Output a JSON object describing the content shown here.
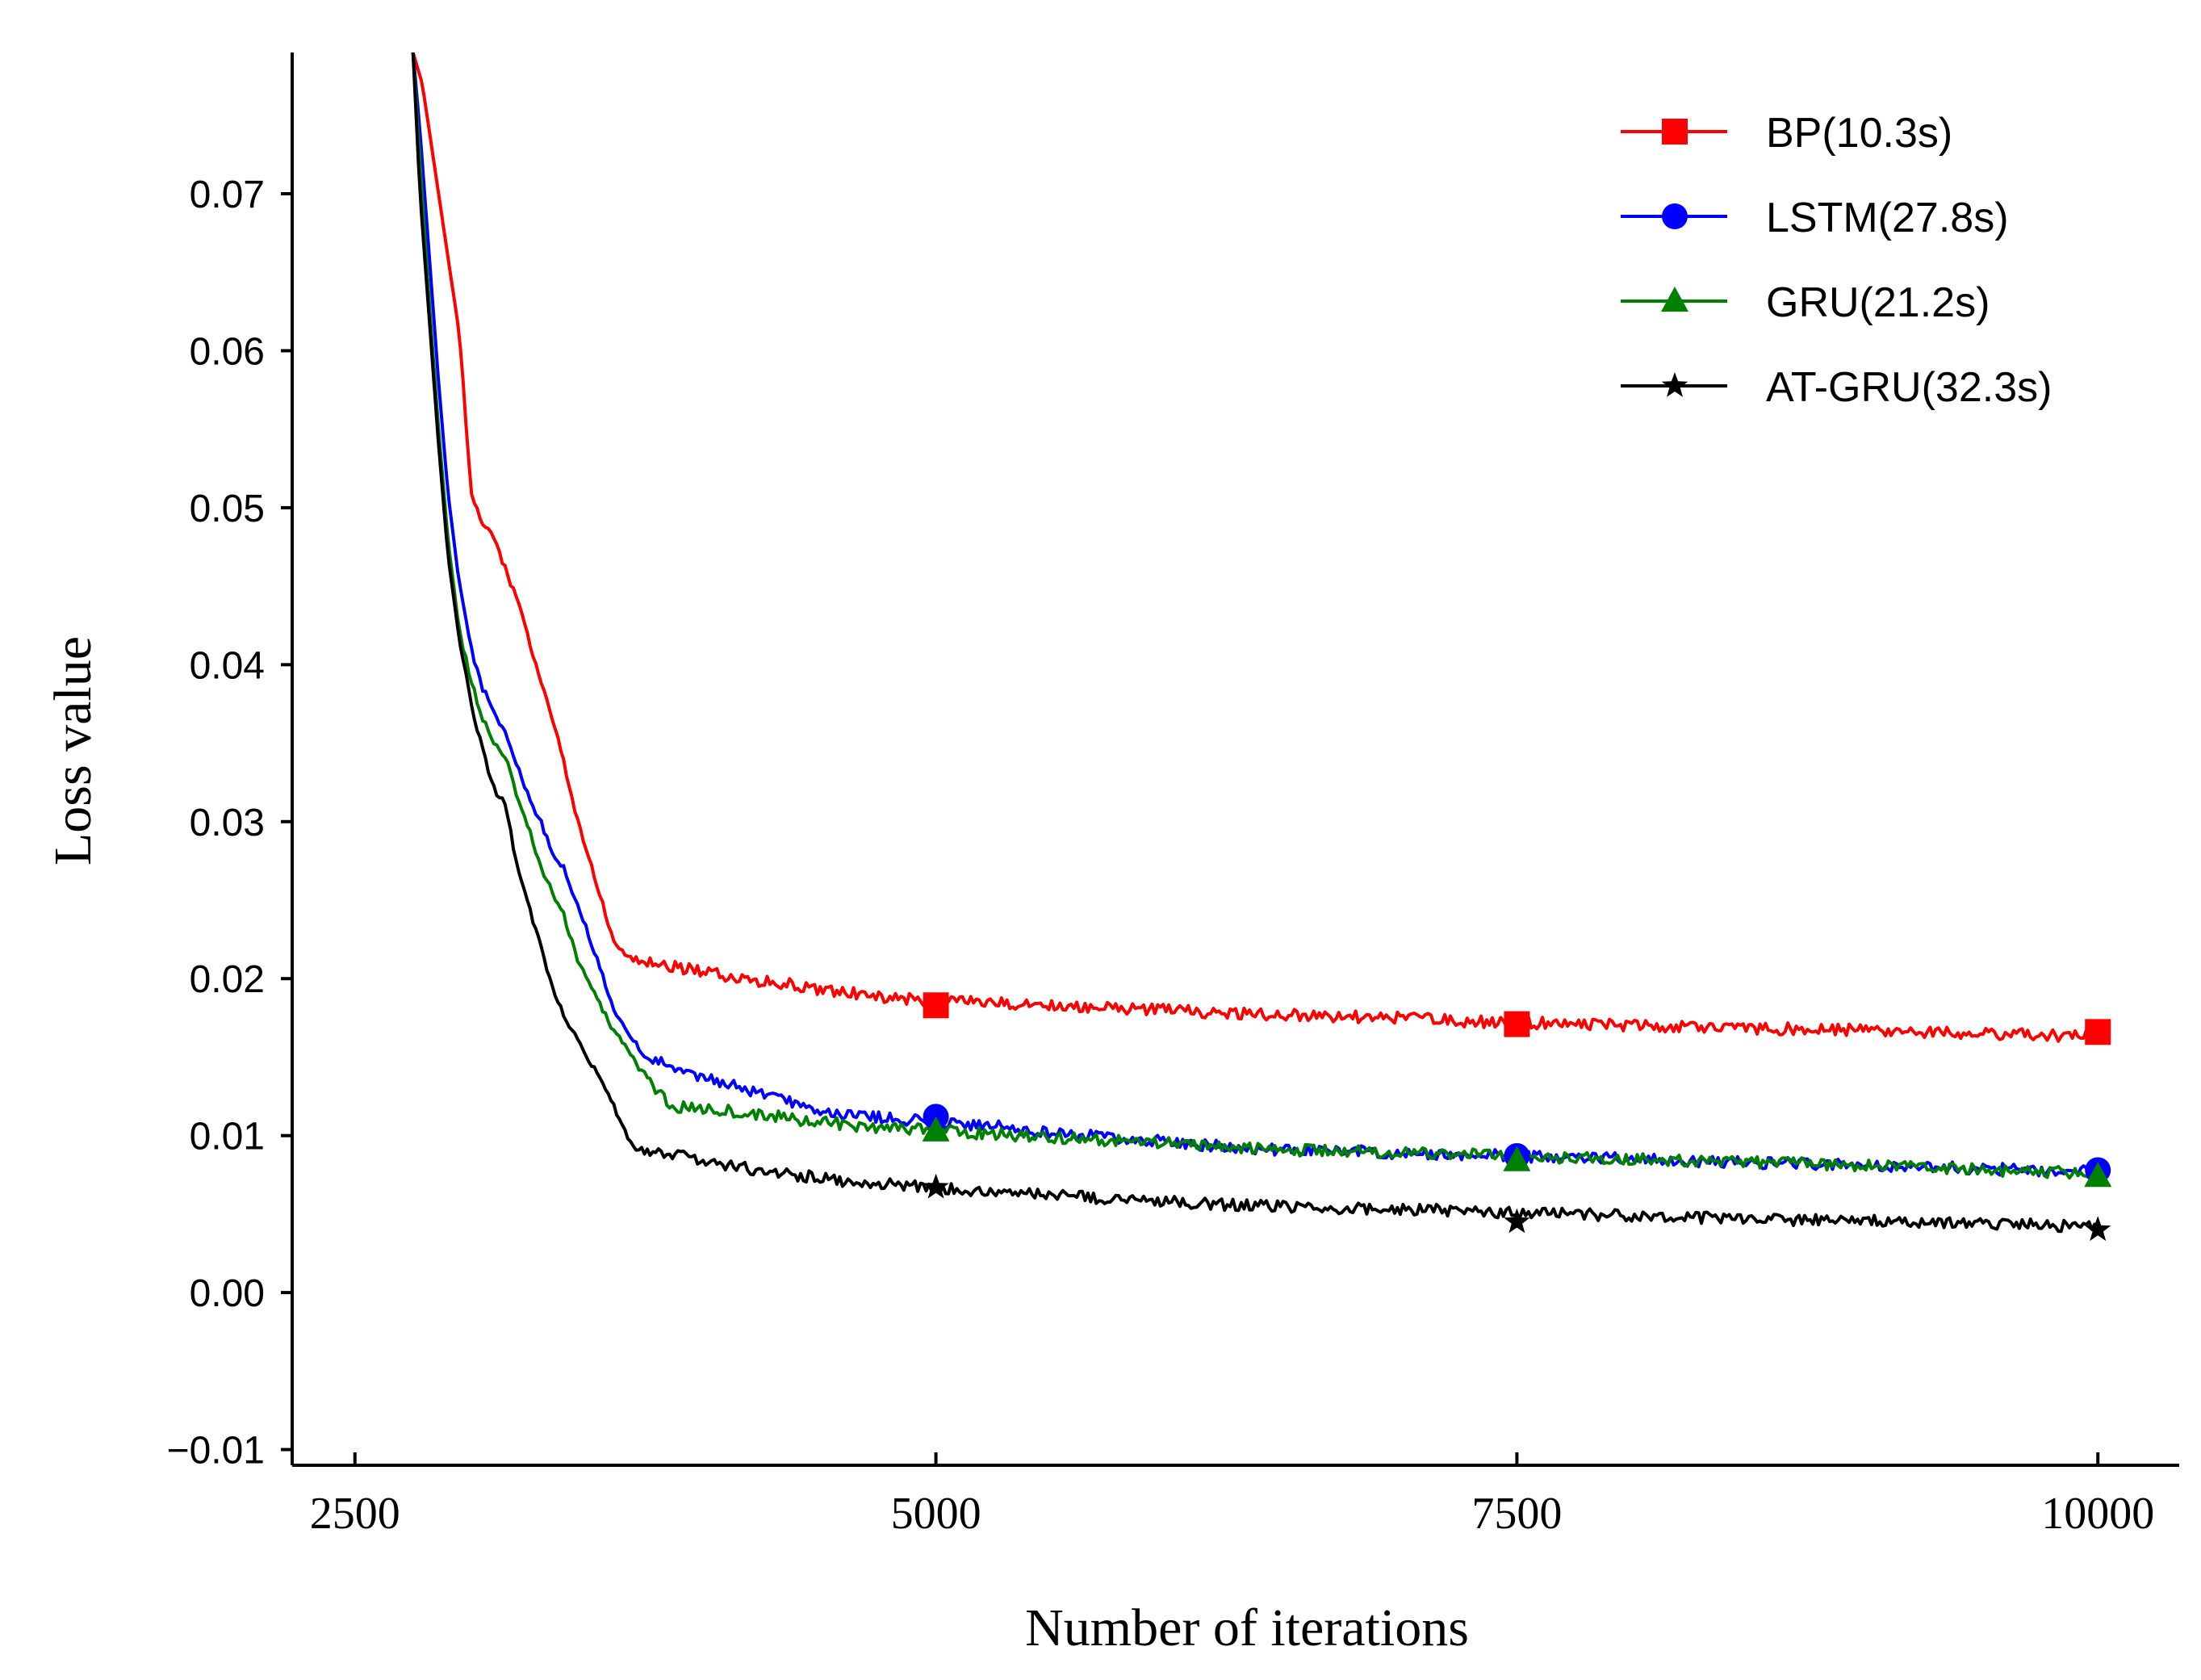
{
  "chart_data": {
    "type": "line",
    "title": "",
    "xlabel": "Number of iterations",
    "ylabel": "Loss value",
    "xlim": [
      2230,
      10350
    ],
    "ylim": [
      -0.011,
      0.079
    ],
    "xticks": [
      2500,
      5000,
      7500,
      10000
    ],
    "xtick_labels": [
      "2500",
      "5000",
      "7500",
      "10000"
    ],
    "yticks": [
      -0.01,
      0.0,
      0.01,
      0.02,
      0.03,
      0.04,
      0.05,
      0.06,
      0.07
    ],
    "ytick_labels": [
      "−0.01",
      "0.00",
      "0.01",
      "0.02",
      "0.03",
      "0.04",
      "0.05",
      "0.06",
      "0.07"
    ],
    "grid": false,
    "legend_position": "top-right",
    "series": [
      {
        "name": "BP(10.3s)",
        "color": "#ff0000",
        "marker": "square",
        "marker_x": [
          5000,
          7500,
          10000
        ],
        "marker_y": [
          0.0183,
          0.0171,
          0.0166
        ],
        "x": [
          2750,
          2790,
          2840,
          2900,
          2950,
          3000,
          3050,
          3100,
          3150,
          3200,
          3260,
          3320,
          3380,
          3440,
          3500,
          3560,
          3620,
          3680,
          3740,
          3800,
          3850,
          3900,
          4000,
          4100,
          4200,
          4300,
          4400,
          4500,
          4600,
          4700,
          4800,
          4900,
          5000,
          5250,
          5500,
          5750,
          6000,
          6250,
          6500,
          6750,
          7000,
          7250,
          7500,
          7750,
          8000,
          8250,
          8500,
          8750,
          9000,
          9250,
          9500,
          9750,
          10000
        ],
        "y": [
          0.079,
          0.077,
          0.072,
          0.066,
          0.061,
          0.051,
          0.049,
          0.048,
          0.046,
          0.044,
          0.041,
          0.038,
          0.035,
          0.031,
          0.028,
          0.025,
          0.022,
          0.0213,
          0.0211,
          0.0209,
          0.0208,
          0.0207,
          0.0205,
          0.0201,
          0.0199,
          0.0198,
          0.0196,
          0.0193,
          0.0191,
          0.019,
          0.0188,
          0.0187,
          0.0186,
          0.0185,
          0.0183,
          0.0181,
          0.018,
          0.0178,
          0.0177,
          0.0176,
          0.0175,
          0.0173,
          0.0172,
          0.0171,
          0.017,
          0.0169,
          0.0168,
          0.0168,
          0.0167,
          0.0166,
          0.0165,
          0.0164,
          0.0163
        ]
      },
      {
        "name": "LSTM(27.8s)",
        "color": "#0000ff",
        "marker": "circle",
        "marker_x": [
          5000,
          7500,
          10000
        ],
        "marker_y": [
          0.0112,
          0.0087,
          0.0078
        ],
        "x": [
          2750,
          2780,
          2820,
          2860,
          2900,
          2950,
          3000,
          3050,
          3100,
          3150,
          3200,
          3250,
          3300,
          3350,
          3400,
          3450,
          3500,
          3550,
          3600,
          3650,
          3700,
          3750,
          3800,
          3850,
          3900,
          4000,
          4100,
          4200,
          4300,
          4400,
          4500,
          4600,
          4700,
          4800,
          4900,
          5000,
          5250,
          5500,
          5750,
          6000,
          6250,
          6500,
          6750,
          7000,
          7250,
          7500,
          7750,
          8000,
          8250,
          8500,
          8750,
          9000,
          9250,
          9500,
          9750,
          10000
        ],
        "y": [
          0.079,
          0.074,
          0.066,
          0.058,
          0.051,
          0.045,
          0.041,
          0.0385,
          0.037,
          0.0355,
          0.0335,
          0.0315,
          0.03,
          0.028,
          0.027,
          0.025,
          0.023,
          0.021,
          0.0185,
          0.017,
          0.016,
          0.015,
          0.0148,
          0.0143,
          0.014,
          0.0137,
          0.0134,
          0.0128,
          0.0124,
          0.012,
          0.0117,
          0.0114,
          0.0112,
          0.0111,
          0.011,
          0.0108,
          0.0106,
          0.0102,
          0.0099,
          0.0096,
          0.0093,
          0.0091,
          0.009,
          0.0089,
          0.0088,
          0.0087,
          0.0086,
          0.0085,
          0.0084,
          0.0083,
          0.0082,
          0.0081,
          0.008,
          0.0079,
          0.0078,
          0.0077
        ]
      },
      {
        "name": "GRU(21.2s)",
        "color": "#008000",
        "marker": "triangle",
        "marker_x": [
          5000,
          7500,
          10000
        ],
        "marker_y": [
          0.0103,
          0.0084,
          0.0074
        ],
        "x": [
          2750,
          2780,
          2820,
          2860,
          2900,
          2950,
          3000,
          3050,
          3100,
          3150,
          3200,
          3250,
          3300,
          3350,
          3400,
          3450,
          3500,
          3550,
          3600,
          3650,
          3700,
          3750,
          3800,
          3850,
          3900,
          4000,
          4100,
          4200,
          4300,
          4400,
          4500,
          4600,
          4700,
          4800,
          4900,
          5000,
          5250,
          5500,
          5750,
          6000,
          6250,
          6500,
          6750,
          7000,
          7250,
          7500,
          7750,
          8000,
          8250,
          8500,
          8750,
          9000,
          9250,
          9500,
          9750,
          10000
        ],
        "y": [
          0.079,
          0.072,
          0.063,
          0.055,
          0.048,
          0.042,
          0.039,
          0.0365,
          0.035,
          0.034,
          0.0315,
          0.0295,
          0.027,
          0.0255,
          0.024,
          0.0215,
          0.02,
          0.0185,
          0.017,
          0.016,
          0.0148,
          0.0138,
          0.0128,
          0.012,
          0.0118,
          0.0117,
          0.0116,
          0.0114,
          0.0113,
          0.011,
          0.0109,
          0.0107,
          0.0106,
          0.0105,
          0.0104,
          0.0103,
          0.0101,
          0.0099,
          0.0097,
          0.0095,
          0.0093,
          0.0091,
          0.009,
          0.0089,
          0.0088,
          0.0087,
          0.0086,
          0.0085,
          0.0084,
          0.0083,
          0.0082,
          0.0081,
          0.008,
          0.0078,
          0.0077,
          0.0076
        ]
      },
      {
        "name": "AT-GRU(32.3s)",
        "color": "#000000",
        "marker": "star",
        "marker_x": [
          5000,
          7500,
          10000
        ],
        "marker_y": [
          0.0067,
          0.0045,
          0.004
        ],
        "x": [
          2750,
          2780,
          2820,
          2860,
          2900,
          2950,
          3000,
          3050,
          3100,
          3150,
          3200,
          3250,
          3300,
          3350,
          3400,
          3450,
          3500,
          3550,
          3600,
          3650,
          3700,
          3750,
          3800,
          3850,
          3900,
          4000,
          4100,
          4200,
          4300,
          4400,
          4500,
          4600,
          4700,
          4800,
          4900,
          5000,
          5250,
          5500,
          5750,
          6000,
          6250,
          6500,
          6750,
          7000,
          7250,
          7500,
          7750,
          8000,
          8250,
          8500,
          8750,
          9000,
          9250,
          9500,
          9750,
          10000
        ],
        "y": [
          0.079,
          0.07,
          0.062,
          0.054,
          0.047,
          0.0415,
          0.0375,
          0.0345,
          0.032,
          0.031,
          0.027,
          0.0245,
          0.022,
          0.0195,
          0.0175,
          0.0165,
          0.015,
          0.0138,
          0.0124,
          0.0105,
          0.0093,
          0.009,
          0.0089,
          0.0088,
          0.0087,
          0.0084,
          0.0081,
          0.0079,
          0.0077,
          0.0075,
          0.0073,
          0.0071,
          0.007,
          0.0069,
          0.0068,
          0.0067,
          0.0064,
          0.0062,
          0.006,
          0.0058,
          0.0056,
          0.0055,
          0.0054,
          0.0053,
          0.0052,
          0.0051,
          0.005,
          0.0049,
          0.0048,
          0.0047,
          0.0046,
          0.0046,
          0.0045,
          0.0044,
          0.0043,
          0.0042
        ]
      }
    ]
  }
}
